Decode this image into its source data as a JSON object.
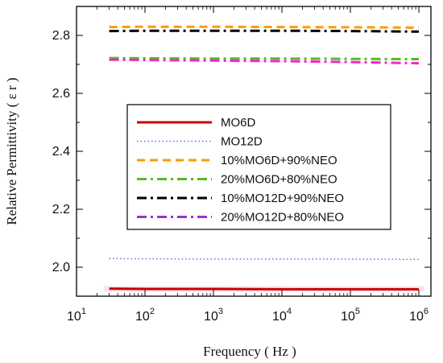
{
  "chart_data": {
    "type": "line",
    "xlabel": "Frequency ( Hz )",
    "ylabel": "Relative Permittivity ( ε r )",
    "xscale": "log",
    "xlim": [
      10,
      1500000
    ],
    "ylim": [
      1.9,
      2.9
    ],
    "x_ticks": [
      {
        "base": "10",
        "exp": "1"
      },
      {
        "base": "10",
        "exp": "2"
      },
      {
        "base": "10",
        "exp": "3"
      },
      {
        "base": "10",
        "exp": "4"
      },
      {
        "base": "10",
        "exp": "5"
      },
      {
        "base": "10",
        "exp": "6"
      }
    ],
    "y_ticks": [
      "2.0",
      "2.2",
      "2.4",
      "2.6",
      "2.8"
    ],
    "y_tick_values": [
      2.0,
      2.2,
      2.4,
      2.6,
      2.8
    ],
    "legend_position": "center",
    "x": [
      30,
      100,
      1000,
      10000,
      100000,
      1000000
    ],
    "series": [
      {
        "name": "MO6D",
        "color": "#cc0000",
        "style": "solid",
        "values": [
          1.926,
          1.925,
          1.925,
          1.924,
          1.924,
          1.924
        ]
      },
      {
        "name": "MO12D",
        "color": "#6a6ae0",
        "style": "dotted",
        "values": [
          2.03,
          2.029,
          2.028,
          2.028,
          2.028,
          2.027
        ]
      },
      {
        "name": "10%MO6D+90%NEO",
        "color": "#ff9900",
        "style": "dashed",
        "values": [
          2.829,
          2.83,
          2.83,
          2.829,
          2.828,
          2.827
        ]
      },
      {
        "name": "20%MO6D+80%NEO",
        "color": "#55bb22",
        "style": "dashdot",
        "values": [
          2.722,
          2.721,
          2.72,
          2.72,
          2.719,
          2.718
        ]
      },
      {
        "name": "10%MO12D+90%NEO",
        "color": "#000000",
        "style": "dashdot",
        "values": [
          2.815,
          2.816,
          2.816,
          2.816,
          2.815,
          2.813
        ]
      },
      {
        "name": "20%MO12D+80%NEO",
        "color": "#ff22cc",
        "legend_color": "#9933cc",
        "style": "dashdot",
        "values": [
          2.716,
          2.715,
          2.713,
          2.711,
          2.708,
          2.704
        ]
      }
    ]
  }
}
